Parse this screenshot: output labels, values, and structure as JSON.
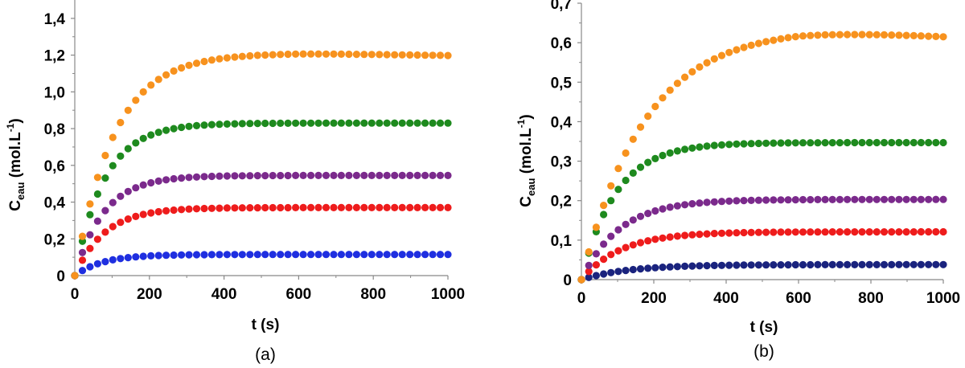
{
  "chart_data": [
    {
      "type": "scatter",
      "panel_label": "(a)",
      "xlabel": "t (s)",
      "ylabel_main": "C",
      "ylabel_sub": "eau",
      "ylabel_unit": "(mol.L",
      "ylabel_sup": "-1",
      "ylabel_close": ")",
      "xlim": [
        0,
        1000
      ],
      "ylim": [
        0,
        1.5
      ],
      "xticks": [
        0,
        200,
        400,
        600,
        800,
        1000
      ],
      "xtick_labels": [
        "0",
        "200",
        "400",
        "600",
        "800",
        "1000"
      ],
      "yticks": [
        0,
        0.2,
        0.4,
        0.6,
        0.8,
        1.0,
        1.2,
        1.4
      ],
      "ytick_labels": [
        "0",
        "0,2",
        "0,4",
        "0,6",
        "0,8",
        "1,0",
        "1,2",
        "1,4"
      ],
      "grid": false,
      "series": [
        {
          "color": "#F7921E",
          "plateau": 1.21,
          "tau": 105,
          "droop": 0.012
        },
        {
          "color": "#1E8A1E",
          "plateau": 0.83,
          "tau": 80,
          "droop": 0
        },
        {
          "color": "#7B2A8C",
          "plateau": 0.545,
          "tau": 78,
          "droop": 0
        },
        {
          "color": "#EE1C1C",
          "plateau": 0.37,
          "tau": 80,
          "droop": 0
        },
        {
          "color": "#1F2FE0",
          "plateau": 0.115,
          "tau": 75,
          "droop": 0
        }
      ]
    },
    {
      "type": "scatter",
      "panel_label": "(b)",
      "xlabel": "t (s)",
      "ylabel_main": "C",
      "ylabel_sub": "eau",
      "ylabel_unit": "(mol.L",
      "ylabel_sup": "-1",
      "ylabel_close": ")",
      "xlim": [
        0,
        1000
      ],
      "ylim": [
        0,
        0.7
      ],
      "xticks": [
        0,
        200,
        400,
        600,
        800,
        1000
      ],
      "xtick_labels": [
        "0",
        "200",
        "400",
        "600",
        "800",
        "1000"
      ],
      "yticks": [
        0,
        0.1,
        0.2,
        0.3,
        0.4,
        0.5,
        0.6,
        0.7
      ],
      "ytick_labels": [
        "0",
        "0,1",
        "0,2",
        "0,3",
        "0,4",
        "0,5",
        "0,6",
        "0,7"
      ],
      "grid": false,
      "series": [
        {
          "color": "#F7921E",
          "plateau": 0.637,
          "tau": 175,
          "droop": 0.02
        },
        {
          "color": "#1E8A1E",
          "plateau": 0.347,
          "tau": 95,
          "droop": 0
        },
        {
          "color": "#7B2A8C",
          "plateau": 0.203,
          "tau": 105,
          "droop": 0
        },
        {
          "color": "#EE1C1C",
          "plateau": 0.121,
          "tau": 110,
          "droop": 0
        },
        {
          "color": "#1A237E",
          "plateau": 0.038,
          "tau": 130,
          "droop": 0
        }
      ]
    }
  ]
}
